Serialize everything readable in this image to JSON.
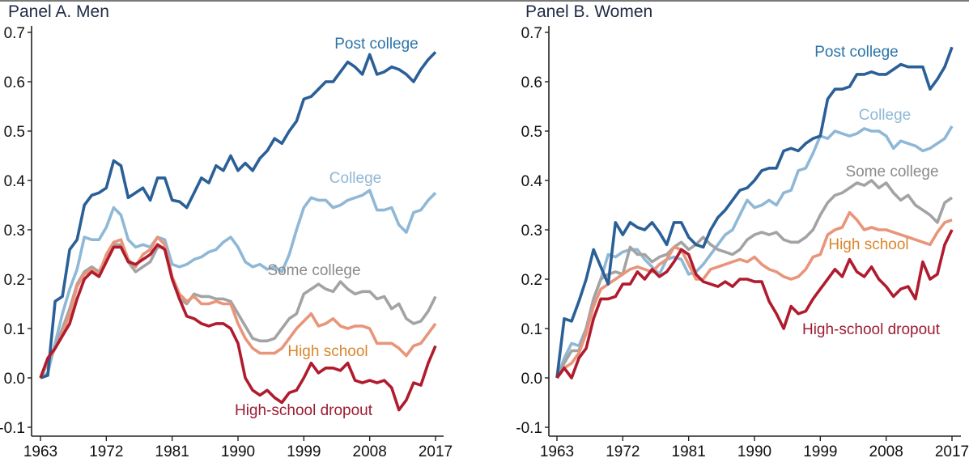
{
  "chart_data": [
    {
      "type": "line",
      "title": "Panel A. Men",
      "xlabel": "",
      "ylabel": "",
      "xlim": [
        1963,
        2017
      ],
      "ylim": [
        -0.1,
        0.7
      ],
      "x_ticks": [
        "1963",
        "1972",
        "1981",
        "1990",
        "1999",
        "2008",
        "2017"
      ],
      "y_ticks": [
        "-0.1",
        "0.0",
        "0.1",
        "0.2",
        "0.3",
        "0.4",
        "0.5",
        "0.6",
        "0.7"
      ],
      "grid": false,
      "start_year": 1963,
      "series": [
        {
          "name": "Post college",
          "color": "#2a5f97",
          "label_color": "#2b74a8",
          "label": "Post college",
          "values": [
            0.0,
            0.005,
            0.155,
            0.165,
            0.26,
            0.28,
            0.35,
            0.37,
            0.375,
            0.385,
            0.44,
            0.43,
            0.365,
            0.375,
            0.385,
            0.36,
            0.405,
            0.405,
            0.36,
            0.357,
            0.345,
            0.375,
            0.405,
            0.395,
            0.43,
            0.42,
            0.45,
            0.42,
            0.435,
            0.42,
            0.445,
            0.46,
            0.485,
            0.475,
            0.5,
            0.52,
            0.565,
            0.57,
            0.585,
            0.6,
            0.6,
            0.62,
            0.64,
            0.63,
            0.615,
            0.655,
            0.615,
            0.62,
            0.63,
            0.625,
            0.615,
            0.6,
            0.625,
            0.645,
            0.66
          ]
        },
        {
          "name": "College",
          "color": "#8fb8d6",
          "label_color": "#8fb8d6",
          "label": "College",
          "values": [
            0.0,
            0.01,
            0.07,
            0.13,
            0.18,
            0.22,
            0.285,
            0.28,
            0.28,
            0.305,
            0.345,
            0.33,
            0.28,
            0.265,
            0.27,
            0.265,
            0.285,
            0.28,
            0.23,
            0.225,
            0.23,
            0.24,
            0.245,
            0.255,
            0.26,
            0.275,
            0.285,
            0.265,
            0.235,
            0.225,
            0.23,
            0.22,
            0.225,
            0.215,
            0.25,
            0.3,
            0.345,
            0.365,
            0.36,
            0.36,
            0.345,
            0.35,
            0.36,
            0.365,
            0.37,
            0.38,
            0.34,
            0.34,
            0.345,
            0.31,
            0.295,
            0.335,
            0.34,
            0.36,
            0.375
          ]
        },
        {
          "name": "Some college",
          "color": "#a3a3a3",
          "label_color": "#8a8a8a",
          "label": "Some college",
          "values": [
            0.0,
            0.03,
            0.06,
            0.1,
            0.14,
            0.19,
            0.215,
            0.225,
            0.215,
            0.245,
            0.27,
            0.27,
            0.235,
            0.215,
            0.225,
            0.235,
            0.265,
            0.265,
            0.2,
            0.16,
            0.15,
            0.17,
            0.165,
            0.165,
            0.16,
            0.16,
            0.155,
            0.13,
            0.105,
            0.08,
            0.075,
            0.075,
            0.08,
            0.1,
            0.12,
            0.13,
            0.17,
            0.18,
            0.19,
            0.18,
            0.175,
            0.195,
            0.18,
            0.17,
            0.175,
            0.175,
            0.16,
            0.165,
            0.14,
            0.15,
            0.12,
            0.11,
            0.115,
            0.135,
            0.165
          ]
        },
        {
          "name": "High school",
          "color": "#e8957a",
          "label_color": "#d9862d",
          "label": "High school",
          "values": [
            0.0,
            0.035,
            0.06,
            0.09,
            0.13,
            0.185,
            0.21,
            0.22,
            0.21,
            0.25,
            0.275,
            0.28,
            0.24,
            0.225,
            0.25,
            0.26,
            0.285,
            0.27,
            0.205,
            0.17,
            0.155,
            0.165,
            0.15,
            0.15,
            0.155,
            0.15,
            0.15,
            0.11,
            0.08,
            0.06,
            0.05,
            0.05,
            0.05,
            0.06,
            0.08,
            0.1,
            0.115,
            0.13,
            0.105,
            0.11,
            0.12,
            0.105,
            0.1,
            0.105,
            0.105,
            0.1,
            0.07,
            0.07,
            0.07,
            0.06,
            0.045,
            0.065,
            0.07,
            0.09,
            0.11
          ]
        },
        {
          "name": "High-school dropout",
          "color": "#b01b2e",
          "label_color": "#9c1c33",
          "label": "High-school dropout",
          "values": [
            0.0,
            0.04,
            0.06,
            0.085,
            0.11,
            0.16,
            0.2,
            0.215,
            0.205,
            0.235,
            0.265,
            0.265,
            0.235,
            0.23,
            0.24,
            0.25,
            0.27,
            0.26,
            0.2,
            0.16,
            0.125,
            0.12,
            0.11,
            0.105,
            0.11,
            0.11,
            0.1,
            0.07,
            0.0,
            -0.025,
            -0.035,
            -0.025,
            -0.04,
            -0.05,
            -0.03,
            -0.025,
            0.0,
            0.03,
            0.01,
            0.02,
            0.02,
            0.015,
            0.03,
            -0.005,
            -0.01,
            -0.005,
            -0.01,
            -0.005,
            -0.02,
            -0.065,
            -0.045,
            -0.01,
            -0.015,
            0.03,
            0.065
          ]
        }
      ]
    },
    {
      "type": "line",
      "title": "Panel B. Women",
      "xlabel": "",
      "ylabel": "",
      "xlim": [
        1963,
        2017
      ],
      "ylim": [
        -0.1,
        0.7
      ],
      "x_ticks": [
        "1963",
        "1972",
        "1981",
        "1990",
        "1999",
        "2008",
        "2017"
      ],
      "y_ticks": [
        "-0.1",
        "0.0",
        "0.1",
        "0.2",
        "0.3",
        "0.4",
        "0.5",
        "0.6",
        "0.7"
      ],
      "grid": false,
      "start_year": 1963,
      "series": [
        {
          "name": "Post college",
          "color": "#2a5f97",
          "label_color": "#2b74a8",
          "label": "Post college",
          "values": [
            0.0,
            0.12,
            0.115,
            0.155,
            0.2,
            0.26,
            0.225,
            0.19,
            0.315,
            0.29,
            0.315,
            0.305,
            0.3,
            0.315,
            0.295,
            0.27,
            0.315,
            0.315,
            0.285,
            0.27,
            0.265,
            0.3,
            0.325,
            0.34,
            0.36,
            0.38,
            0.385,
            0.4,
            0.42,
            0.425,
            0.425,
            0.46,
            0.465,
            0.46,
            0.475,
            0.485,
            0.49,
            0.565,
            0.585,
            0.585,
            0.59,
            0.615,
            0.615,
            0.62,
            0.615,
            0.615,
            0.625,
            0.635,
            0.63,
            0.63,
            0.63,
            0.585,
            0.605,
            0.63,
            0.67
          ]
        },
        {
          "name": "College",
          "color": "#8fb8d6",
          "label_color": "#8fb8d6",
          "label": "College",
          "values": [
            0.0,
            0.04,
            0.07,
            0.065,
            0.1,
            0.16,
            0.2,
            0.25,
            0.245,
            0.255,
            0.26,
            0.26,
            0.24,
            0.225,
            0.21,
            0.24,
            0.245,
            0.24,
            0.21,
            0.215,
            0.23,
            0.25,
            0.27,
            0.29,
            0.3,
            0.33,
            0.36,
            0.345,
            0.35,
            0.36,
            0.35,
            0.375,
            0.38,
            0.42,
            0.425,
            0.455,
            0.49,
            0.485,
            0.5,
            0.495,
            0.49,
            0.495,
            0.505,
            0.5,
            0.5,
            0.49,
            0.465,
            0.48,
            0.475,
            0.47,
            0.46,
            0.465,
            0.475,
            0.485,
            0.51
          ]
        },
        {
          "name": "Some college",
          "color": "#a3a3a3",
          "label_color": "#8a8a8a",
          "label": "Some college",
          "values": [
            0.0,
            0.03,
            0.055,
            0.055,
            0.1,
            0.16,
            0.2,
            0.21,
            0.215,
            0.21,
            0.265,
            0.25,
            0.25,
            0.235,
            0.245,
            0.25,
            0.265,
            0.275,
            0.26,
            0.27,
            0.285,
            0.27,
            0.26,
            0.255,
            0.25,
            0.26,
            0.28,
            0.29,
            0.295,
            0.29,
            0.295,
            0.28,
            0.275,
            0.275,
            0.285,
            0.3,
            0.33,
            0.355,
            0.37,
            0.375,
            0.385,
            0.395,
            0.39,
            0.4,
            0.385,
            0.395,
            0.375,
            0.36,
            0.37,
            0.35,
            0.34,
            0.33,
            0.315,
            0.355,
            0.365
          ]
        },
        {
          "name": "High school",
          "color": "#e8957a",
          "label_color": "#d9862d",
          "label": "High school",
          "values": [
            0.0,
            0.02,
            0.03,
            0.05,
            0.09,
            0.145,
            0.18,
            0.19,
            0.2,
            0.21,
            0.22,
            0.225,
            0.22,
            0.215,
            0.23,
            0.24,
            0.265,
            0.26,
            0.23,
            0.2,
            0.2,
            0.22,
            0.225,
            0.23,
            0.235,
            0.24,
            0.235,
            0.245,
            0.23,
            0.22,
            0.215,
            0.205,
            0.2,
            0.205,
            0.22,
            0.245,
            0.25,
            0.29,
            0.3,
            0.305,
            0.335,
            0.32,
            0.3,
            0.305,
            0.3,
            0.3,
            0.295,
            0.29,
            0.285,
            0.28,
            0.275,
            0.27,
            0.295,
            0.315,
            0.32
          ]
        },
        {
          "name": "High-school dropout",
          "color": "#b01b2e",
          "label_color": "#9c1c33",
          "label": "High-school dropout",
          "values": [
            0.0,
            0.02,
            0.0,
            0.04,
            0.06,
            0.12,
            0.16,
            0.16,
            0.165,
            0.19,
            0.19,
            0.215,
            0.2,
            0.22,
            0.205,
            0.215,
            0.235,
            0.26,
            0.25,
            0.21,
            0.195,
            0.19,
            0.185,
            0.195,
            0.185,
            0.2,
            0.2,
            0.195,
            0.195,
            0.155,
            0.13,
            0.1,
            0.145,
            0.13,
            0.135,
            0.16,
            0.18,
            0.2,
            0.22,
            0.205,
            0.24,
            0.215,
            0.205,
            0.225,
            0.2,
            0.185,
            0.165,
            0.18,
            0.185,
            0.16,
            0.235,
            0.2,
            0.21,
            0.27,
            0.3
          ]
        }
      ]
    }
  ]
}
